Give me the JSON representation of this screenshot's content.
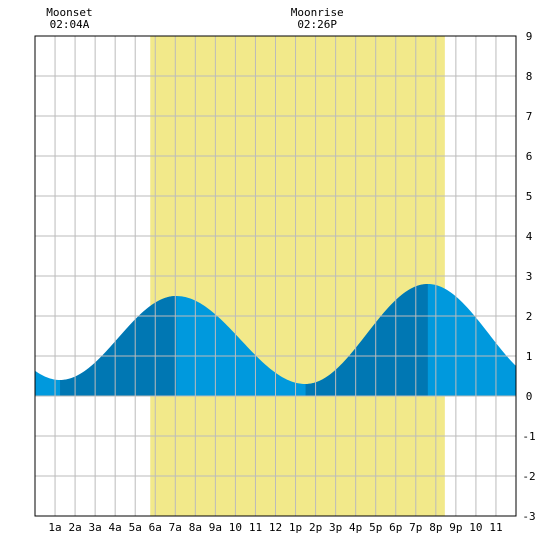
{
  "chart_data": {
    "type": "area",
    "title": "",
    "xlabel": "",
    "ylabel": "",
    "x_unit": "hour of day",
    "xlim": [
      0,
      24
    ],
    "ylim": [
      -3,
      9
    ],
    "y_ticks": [
      -3,
      -2,
      -1,
      0,
      1,
      2,
      3,
      4,
      5,
      6,
      7,
      8,
      9
    ],
    "x_tick_labels": [
      "1a",
      "2a",
      "3a",
      "4a",
      "5a",
      "6a",
      "7a",
      "8a",
      "9a",
      "10",
      "11",
      "12",
      "1p",
      "2p",
      "3p",
      "4p",
      "5p",
      "6p",
      "7p",
      "8p",
      "9p",
      "10",
      "11"
    ],
    "grid": true,
    "daylight": {
      "start": 5.75,
      "end": 20.45,
      "color": "#f2e98a"
    },
    "moon_events": [
      {
        "label": "Moonset",
        "time": "02:04A",
        "hour": 2.07
      },
      {
        "label": "Moonrise",
        "time": "02:26P",
        "hour": 14.43
      }
    ],
    "tide_extremes": [
      {
        "hour": 1.25,
        "value": 0.4,
        "kind": "low"
      },
      {
        "hour": 7.05,
        "value": 2.5,
        "kind": "high"
      },
      {
        "hour": 13.5,
        "value": 0.3,
        "kind": "low"
      },
      {
        "hour": 19.6,
        "value": 2.8,
        "kind": "high"
      }
    ],
    "dark_bands": [
      {
        "start": 1.25,
        "end": 7.05
      },
      {
        "start": 13.5,
        "end": 19.6
      }
    ],
    "end_values": {
      "start": 0.55,
      "end": 1.0
    },
    "colors": {
      "tide": "#0099dd",
      "tide_dark": "#0077b3",
      "grid": "#bbbbbb",
      "frame": "#000000"
    }
  }
}
